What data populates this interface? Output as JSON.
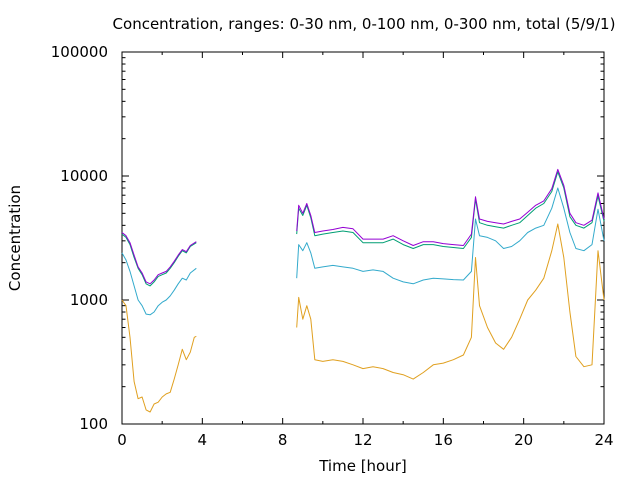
{
  "chart_data": {
    "type": "line",
    "title": "Concentration, ranges: 0-30 nm, 0-100 nm, 0-300 nm, total (5/9/1)",
    "xlabel": "Time [hour]",
    "ylabel": "Concentration",
    "xlim": [
      0,
      24
    ],
    "ylim": [
      100,
      100000
    ],
    "yscale": "log",
    "grid": false,
    "legend": "none",
    "x_ticks": [
      0,
      4,
      8,
      12,
      16,
      20,
      24
    ],
    "x_tick_labels": [
      "0",
      "4",
      "8",
      "12",
      "16",
      "20",
      "24"
    ],
    "y_ticks": [
      100,
      1000,
      10000,
      100000
    ],
    "y_tick_labels": [
      "100",
      "1000",
      "10000",
      "100000"
    ],
    "series": [
      {
        "color": "#e0a020",
        "segments": [
          [
            [
              0,
              1000
            ],
            [
              0.2,
              900
            ],
            [
              0.4,
              500
            ],
            [
              0.6,
              220
            ],
            [
              0.8,
              160
            ],
            [
              1.0,
              165
            ],
            [
              1.2,
              130
            ],
            [
              1.4,
              125
            ],
            [
              1.6,
              145
            ],
            [
              1.8,
              150
            ],
            [
              2.0,
              165
            ],
            [
              2.2,
              175
            ],
            [
              2.4,
              180
            ],
            [
              2.6,
              230
            ],
            [
              2.8,
              300
            ],
            [
              3.0,
              400
            ],
            [
              3.2,
              330
            ],
            [
              3.4,
              380
            ],
            [
              3.6,
              500
            ],
            [
              3.7,
              510
            ]
          ],
          [
            [
              8.7,
              600
            ],
            [
              8.8,
              1050
            ],
            [
              9.0,
              700
            ],
            [
              9.2,
              900
            ],
            [
              9.4,
              700
            ],
            [
              9.6,
              330
            ],
            [
              10.0,
              320
            ],
            [
              10.5,
              330
            ],
            [
              11.0,
              320
            ],
            [
              11.5,
              300
            ],
            [
              12.0,
              280
            ],
            [
              12.5,
              290
            ],
            [
              13.0,
              280
            ],
            [
              13.5,
              260
            ],
            [
              14.0,
              250
            ],
            [
              14.5,
              230
            ],
            [
              15.0,
              260
            ],
            [
              15.5,
              300
            ],
            [
              16.0,
              310
            ],
            [
              16.5,
              330
            ],
            [
              17.0,
              360
            ],
            [
              17.4,
              500
            ],
            [
              17.6,
              2200
            ],
            [
              17.8,
              900
            ],
            [
              18.2,
              600
            ],
            [
              18.6,
              450
            ],
            [
              19.0,
              400
            ],
            [
              19.4,
              500
            ],
            [
              19.8,
              700
            ],
            [
              20.2,
              1000
            ],
            [
              20.6,
              1200
            ],
            [
              21.0,
              1500
            ],
            [
              21.4,
              2500
            ],
            [
              21.7,
              4100
            ],
            [
              22.0,
              2200
            ],
            [
              22.3,
              800
            ],
            [
              22.6,
              350
            ],
            [
              23.0,
              290
            ],
            [
              23.4,
              300
            ],
            [
              23.7,
              2500
            ],
            [
              24.0,
              1000
            ]
          ]
        ]
      },
      {
        "color": "#33aacc",
        "segments": [
          [
            [
              0,
              2400
            ],
            [
              0.2,
              2100
            ],
            [
              0.4,
              1700
            ],
            [
              0.6,
              1300
            ],
            [
              0.8,
              1000
            ],
            [
              1.0,
              900
            ],
            [
              1.2,
              770
            ],
            [
              1.4,
              760
            ],
            [
              1.6,
              800
            ],
            [
              1.8,
              900
            ],
            [
              2.0,
              960
            ],
            [
              2.2,
              1000
            ],
            [
              2.4,
              1080
            ],
            [
              2.6,
              1200
            ],
            [
              2.8,
              1350
            ],
            [
              3.0,
              1500
            ],
            [
              3.2,
              1450
            ],
            [
              3.4,
              1650
            ],
            [
              3.7,
              1800
            ]
          ],
          [
            [
              8.7,
              1500
            ],
            [
              8.8,
              2800
            ],
            [
              9.0,
              2500
            ],
            [
              9.2,
              2900
            ],
            [
              9.4,
              2400
            ],
            [
              9.6,
              1800
            ],
            [
              10.0,
              1850
            ],
            [
              10.5,
              1900
            ],
            [
              11.0,
              1850
            ],
            [
              11.5,
              1800
            ],
            [
              12.0,
              1700
            ],
            [
              12.5,
              1750
            ],
            [
              13.0,
              1700
            ],
            [
              13.5,
              1500
            ],
            [
              14.0,
              1400
            ],
            [
              14.5,
              1350
            ],
            [
              15.0,
              1450
            ],
            [
              15.5,
              1500
            ],
            [
              16.0,
              1480
            ],
            [
              16.5,
              1460
            ],
            [
              17.0,
              1450
            ],
            [
              17.4,
              1700
            ],
            [
              17.6,
              4500
            ],
            [
              17.8,
              3300
            ],
            [
              18.2,
              3200
            ],
            [
              18.6,
              3000
            ],
            [
              19.0,
              2600
            ],
            [
              19.4,
              2700
            ],
            [
              19.8,
              3000
            ],
            [
              20.2,
              3500
            ],
            [
              20.6,
              3800
            ],
            [
              21.0,
              4000
            ],
            [
              21.4,
              5500
            ],
            [
              21.7,
              8000
            ],
            [
              22.0,
              5500
            ],
            [
              22.3,
              3500
            ],
            [
              22.6,
              2600
            ],
            [
              23.0,
              2500
            ],
            [
              23.4,
              2800
            ],
            [
              23.7,
              5400
            ],
            [
              24.0,
              3000
            ]
          ]
        ]
      },
      {
        "color": "#009e73",
        "segments": [
          [
            [
              0,
              3400
            ],
            [
              0.2,
              3200
            ],
            [
              0.4,
              2800
            ],
            [
              0.6,
              2200
            ],
            [
              0.8,
              1800
            ],
            [
              1.0,
              1600
            ],
            [
              1.2,
              1350
            ],
            [
              1.4,
              1300
            ],
            [
              1.6,
              1400
            ],
            [
              1.8,
              1550
            ],
            [
              2.0,
              1600
            ],
            [
              2.2,
              1650
            ],
            [
              2.4,
              1800
            ],
            [
              2.6,
              2000
            ],
            [
              2.8,
              2250
            ],
            [
              3.0,
              2500
            ],
            [
              3.2,
              2400
            ],
            [
              3.4,
              2700
            ],
            [
              3.7,
              2900
            ]
          ],
          [
            [
              8.7,
              3400
            ],
            [
              8.8,
              5500
            ],
            [
              9.0,
              4800
            ],
            [
              9.2,
              5800
            ],
            [
              9.4,
              4600
            ],
            [
              9.6,
              3300
            ],
            [
              10.0,
              3400
            ],
            [
              10.5,
              3500
            ],
            [
              11.0,
              3600
            ],
            [
              11.5,
              3500
            ],
            [
              12.0,
              2900
            ],
            [
              12.5,
              2900
            ],
            [
              13.0,
              2900
            ],
            [
              13.5,
              3100
            ],
            [
              14.0,
              2800
            ],
            [
              14.5,
              2600
            ],
            [
              15.0,
              2800
            ],
            [
              15.5,
              2800
            ],
            [
              16.0,
              2700
            ],
            [
              16.5,
              2650
            ],
            [
              17.0,
              2600
            ],
            [
              17.4,
              3200
            ],
            [
              17.6,
              6500
            ],
            [
              17.8,
              4200
            ],
            [
              18.2,
              4000
            ],
            [
              18.6,
              3900
            ],
            [
              19.0,
              3800
            ],
            [
              19.4,
              4000
            ],
            [
              19.8,
              4200
            ],
            [
              20.2,
              4800
            ],
            [
              20.6,
              5500
            ],
            [
              21.0,
              6000
            ],
            [
              21.4,
              7500
            ],
            [
              21.7,
              10800
            ],
            [
              22.0,
              8000
            ],
            [
              22.3,
              4700
            ],
            [
              22.6,
              4000
            ],
            [
              23.0,
              3800
            ],
            [
              23.4,
              4200
            ],
            [
              23.7,
              6900
            ],
            [
              24.0,
              4300
            ]
          ]
        ]
      },
      {
        "color": "#9400d3",
        "segments": [
          [
            [
              0,
              3500
            ],
            [
              0.2,
              3300
            ],
            [
              0.4,
              2900
            ],
            [
              0.6,
              2300
            ],
            [
              0.8,
              1850
            ],
            [
              1.0,
              1650
            ],
            [
              1.2,
              1400
            ],
            [
              1.4,
              1350
            ],
            [
              1.6,
              1450
            ],
            [
              1.8,
              1600
            ],
            [
              2.0,
              1650
            ],
            [
              2.2,
              1700
            ],
            [
              2.4,
              1850
            ],
            [
              2.6,
              2050
            ],
            [
              2.8,
              2300
            ],
            [
              3.0,
              2550
            ],
            [
              3.2,
              2450
            ],
            [
              3.4,
              2750
            ],
            [
              3.7,
              2950
            ]
          ],
          [
            [
              8.7,
              3600
            ],
            [
              8.8,
              5800
            ],
            [
              9.0,
              5000
            ],
            [
              9.2,
              6000
            ],
            [
              9.4,
              4800
            ],
            [
              9.6,
              3500
            ],
            [
              10.0,
              3600
            ],
            [
              10.5,
              3700
            ],
            [
              11.0,
              3850
            ],
            [
              11.5,
              3750
            ],
            [
              12.0,
              3100
            ],
            [
              12.5,
              3100
            ],
            [
              13.0,
              3100
            ],
            [
              13.5,
              3300
            ],
            [
              14.0,
              3000
            ],
            [
              14.5,
              2750
            ],
            [
              15.0,
              2950
            ],
            [
              15.5,
              2950
            ],
            [
              16.0,
              2850
            ],
            [
              16.5,
              2800
            ],
            [
              17.0,
              2750
            ],
            [
              17.4,
              3400
            ],
            [
              17.6,
              6800
            ],
            [
              17.8,
              4500
            ],
            [
              18.2,
              4300
            ],
            [
              18.6,
              4200
            ],
            [
              19.0,
              4100
            ],
            [
              19.4,
              4300
            ],
            [
              19.8,
              4500
            ],
            [
              20.2,
              5100
            ],
            [
              20.6,
              5800
            ],
            [
              21.0,
              6300
            ],
            [
              21.4,
              7900
            ],
            [
              21.7,
              11300
            ],
            [
              22.0,
              8400
            ],
            [
              22.3,
              5000
            ],
            [
              22.6,
              4200
            ],
            [
              23.0,
              4000
            ],
            [
              23.4,
              4400
            ],
            [
              23.7,
              7300
            ],
            [
              24.0,
              4500
            ]
          ]
        ]
      }
    ]
  }
}
